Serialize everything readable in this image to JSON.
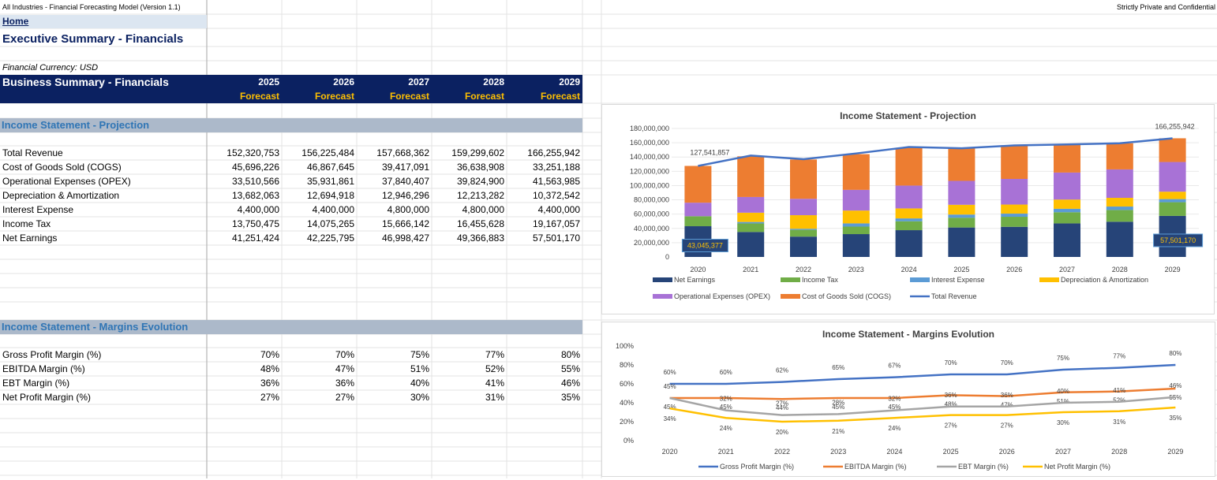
{
  "top": {
    "left_title": "All Industries - Financial Forecasting Model (Version 1.1)",
    "right_title": "Strictly Private and Confidential",
    "home": "Home",
    "page_title": "Executive Summary - Financials",
    "currency": "Financial Currency: USD"
  },
  "header": {
    "title": "Business Summary - Financials",
    "years": [
      "2025",
      "2026",
      "2027",
      "2028",
      "2029"
    ],
    "subtitle": "Forecast"
  },
  "income_statement": {
    "section_title": "Income Statement - Projection",
    "rows": [
      {
        "label": "Total Revenue",
        "values": [
          "152,320,753",
          "156,225,484",
          "157,668,362",
          "159,299,602",
          "166,255,942"
        ]
      },
      {
        "label": "Cost of Goods Sold (COGS)",
        "values": [
          "45,696,226",
          "46,867,645",
          "39,417,091",
          "36,638,908",
          "33,251,188"
        ]
      },
      {
        "label": "Operational Expenses (OPEX)",
        "values": [
          "33,510,566",
          "35,931,861",
          "37,840,407",
          "39,824,900",
          "41,563,985"
        ]
      },
      {
        "label": "Depreciation & Amortization",
        "values": [
          "13,682,063",
          "12,694,918",
          "12,946,296",
          "12,213,282",
          "10,372,542"
        ]
      },
      {
        "label": "Interest Expense",
        "values": [
          "4,400,000",
          "4,400,000",
          "4,800,000",
          "4,800,000",
          "4,400,000"
        ]
      },
      {
        "label": "Income Tax",
        "values": [
          "13,750,475",
          "14,075,265",
          "15,666,142",
          "16,455,628",
          "19,167,057"
        ]
      },
      {
        "label": "Net Earnings",
        "values": [
          "41,251,424",
          "42,225,795",
          "46,998,427",
          "49,366,883",
          "57,501,170"
        ]
      }
    ]
  },
  "margins": {
    "section_title": "Income Statement - Margins Evolution",
    "rows": [
      {
        "label": "Gross Profit Margin (%)",
        "values": [
          "70%",
          "70%",
          "75%",
          "77%",
          "80%"
        ]
      },
      {
        "label": "EBITDA Margin (%)",
        "values": [
          "48%",
          "47%",
          "51%",
          "52%",
          "55%"
        ]
      },
      {
        "label": "EBT Margin (%)",
        "values": [
          "36%",
          "36%",
          "40%",
          "41%",
          "46%"
        ]
      },
      {
        "label": "Net Profit Margin (%)",
        "values": [
          "27%",
          "27%",
          "30%",
          "31%",
          "35%"
        ]
      }
    ]
  },
  "chart_data": [
    {
      "type": "bar",
      "title": "Income Statement - Projection",
      "stacked": true,
      "categories": [
        "2020",
        "2021",
        "2022",
        "2023",
        "2024",
        "2025",
        "2026",
        "2027",
        "2028",
        "2029"
      ],
      "ylim": [
        0,
        180000000
      ],
      "yticks": [
        "0",
        "20,000,000",
        "40,000,000",
        "60,000,000",
        "80,000,000",
        "100,000,000",
        "120,000,000",
        "140,000,000",
        "160,000,000",
        "180,000,000"
      ],
      "series": [
        {
          "name": "Net Earnings",
          "color": "#264478",
          "values": [
            43045377,
            35000000,
            28500000,
            32000000,
            37500000,
            41251424,
            42225795,
            46998427,
            49366883,
            57501170
          ]
        },
        {
          "name": "Income Tax",
          "color": "#70ad47",
          "values": [
            14000000,
            12000000,
            9500000,
            10500000,
            12500000,
            13750475,
            14075265,
            15666142,
            16455628,
            19167057
          ]
        },
        {
          "name": "Interest Expense",
          "color": "#5b9bd5",
          "values": [
            0,
            2000000,
            1500000,
            4500000,
            4000000,
            4400000,
            4400000,
            4800000,
            4800000,
            4400000
          ]
        },
        {
          "name": "Depreciation & Amortization",
          "color": "#ffc000",
          "values": [
            0,
            13000000,
            19000000,
            18000000,
            14000000,
            13682063,
            12694918,
            12946296,
            12213282,
            10372542
          ]
        },
        {
          "name": "Operational Expenses (OPEX)",
          "color": "#a872d6",
          "values": [
            19000000,
            22000000,
            23000000,
            29000000,
            32000000,
            33510566,
            35931861,
            37840407,
            39824900,
            41563985
          ]
        },
        {
          "name": "Cost of Goods Sold (COGS)",
          "color": "#ed7d31",
          "values": [
            51496480,
            57000000,
            55000000,
            50000000,
            53000000,
            45696226,
            46867645,
            39417091,
            36638908,
            33251188
          ]
        }
      ],
      "line": {
        "name": "Total Revenue",
        "color": "#4472c4",
        "values": [
          127541857,
          142000000,
          137000000,
          145000000,
          154000000,
          152320753,
          156225484,
          157668362,
          159299602,
          166255942
        ]
      },
      "labels": {
        "first_revenue": "127,541,857",
        "last_revenue": "166,255,942",
        "first_earnings": "43,045,377",
        "last_earnings": "57,501,170"
      }
    },
    {
      "type": "line",
      "title": "Income Statement - Margins Evolution",
      "categories": [
        "2020",
        "2021",
        "2022",
        "2023",
        "2024",
        "2025",
        "2026",
        "2027",
        "2028",
        "2029"
      ],
      "ylim": [
        0,
        100
      ],
      "yticks": [
        "0%",
        "20%",
        "40%",
        "60%",
        "80%",
        "100%"
      ],
      "series": [
        {
          "name": "Gross Profit Margin (%)",
          "color": "#4472c4",
          "values": [
            60,
            60,
            62,
            65,
            67,
            70,
            70,
            75,
            77,
            80
          ]
        },
        {
          "name": "EBITDA Margin (%)",
          "color": "#ed7d31",
          "values": [
            45,
            45,
            44,
            45,
            45,
            48,
            47,
            51,
            52,
            55
          ]
        },
        {
          "name": "EBT Margin (%)",
          "color": "#a5a5a5",
          "values": [
            45,
            32,
            27,
            28,
            32,
            36,
            36,
            40,
            41,
            46
          ]
        },
        {
          "name": "Net Profit Margin (%)",
          "color": "#ffc000",
          "values": [
            34,
            24,
            20,
            21,
            24,
            27,
            27,
            30,
            31,
            35
          ]
        }
      ]
    }
  ]
}
